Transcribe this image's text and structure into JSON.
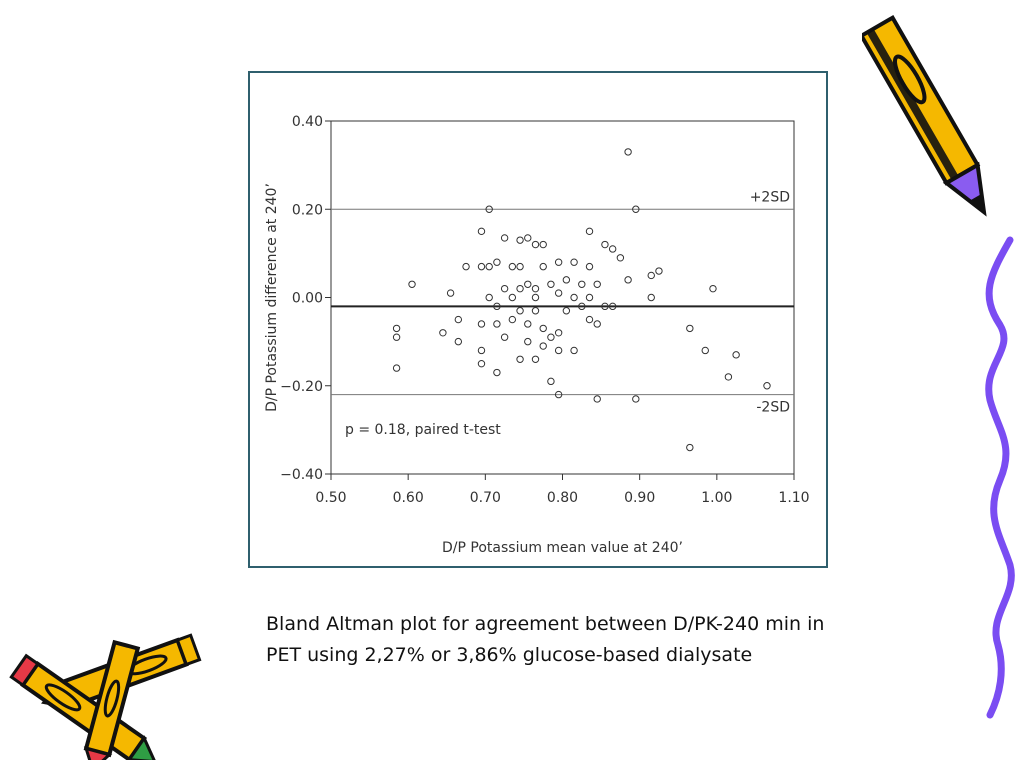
{
  "caption": "Bland Altman plot for agreement between D/PK-240 min in PET using 2,27% or 3,86% glucose-based dialysate",
  "colors": {
    "frame": "#2f5f6d",
    "axis": "#333333",
    "point": "#333333",
    "pencil_yellow": "#f5b800",
    "pencil_purple": "#8a5cf0",
    "squiggle": "#7a4df2"
  },
  "decorations": [
    "pencil-icon",
    "crossed-pencils-icon",
    "squiggle-line"
  ],
  "chart_data": {
    "type": "scatter",
    "xlabel": "D/P Potassium mean value at 240’",
    "ylabel": "D/P Potassium difference at 240’",
    "xlim": [
      0.5,
      1.1
    ],
    "ylim": [
      -0.4,
      0.4
    ],
    "x_ticks": [
      "0.50",
      "0.60",
      "0.70",
      "0.80",
      "0.90",
      "1.00",
      "1.10"
    ],
    "y_ticks": [
      "0.40",
      "0.20",
      "0.00",
      "−0.20",
      "−0.40"
    ],
    "grid": false,
    "reference_lines": [
      {
        "label": "+2SD",
        "y": 0.2
      },
      {
        "label": "",
        "y": -0.02
      },
      {
        "label": "-2SD",
        "y": -0.22
      }
    ],
    "annotation": "p = 0.18, paired t-test",
    "points": [
      [
        0.885,
        0.33
      ],
      [
        0.895,
        0.2
      ],
      [
        0.705,
        0.2
      ],
      [
        0.695,
        0.15
      ],
      [
        0.835,
        0.15
      ],
      [
        0.745,
        0.13
      ],
      [
        0.755,
        0.135
      ],
      [
        0.775,
        0.12
      ],
      [
        0.855,
        0.12
      ],
      [
        0.865,
        0.11
      ],
      [
        0.875,
        0.09
      ],
      [
        0.725,
        0.135
      ],
      [
        0.765,
        0.12
      ],
      [
        0.675,
        0.07
      ],
      [
        0.695,
        0.07
      ],
      [
        0.705,
        0.07
      ],
      [
        0.715,
        0.08
      ],
      [
        0.735,
        0.07
      ],
      [
        0.745,
        0.07
      ],
      [
        0.775,
        0.07
      ],
      [
        0.795,
        0.08
      ],
      [
        0.815,
        0.08
      ],
      [
        0.835,
        0.07
      ],
      [
        0.925,
        0.06
      ],
      [
        0.915,
        0.05
      ],
      [
        0.885,
        0.04
      ],
      [
        0.605,
        0.03
      ],
      [
        0.755,
        0.03
      ],
      [
        0.785,
        0.03
      ],
      [
        0.805,
        0.04
      ],
      [
        0.825,
        0.03
      ],
      [
        0.845,
        0.03
      ],
      [
        0.725,
        0.02
      ],
      [
        0.745,
        0.02
      ],
      [
        0.765,
        0.02
      ],
      [
        0.655,
        0.01
      ],
      [
        0.705,
        0.0
      ],
      [
        0.735,
        0.0
      ],
      [
        0.765,
        0.0
      ],
      [
        0.795,
        0.01
      ],
      [
        0.815,
        0.0
      ],
      [
        0.835,
        0.0
      ],
      [
        0.855,
        -0.02
      ],
      [
        0.915,
        0.0
      ],
      [
        0.995,
        0.02
      ],
      [
        0.715,
        -0.02
      ],
      [
        0.745,
        -0.03
      ],
      [
        0.765,
        -0.03
      ],
      [
        0.805,
        -0.03
      ],
      [
        0.825,
        -0.02
      ],
      [
        0.865,
        -0.02
      ],
      [
        0.665,
        -0.05
      ],
      [
        0.695,
        -0.06
      ],
      [
        0.715,
        -0.06
      ],
      [
        0.735,
        -0.05
      ],
      [
        0.755,
        -0.06
      ],
      [
        0.775,
        -0.07
      ],
      [
        0.795,
        -0.08
      ],
      [
        0.835,
        -0.05
      ],
      [
        0.845,
        -0.06
      ],
      [
        0.585,
        -0.07
      ],
      [
        0.585,
        -0.09
      ],
      [
        0.645,
        -0.08
      ],
      [
        0.665,
        -0.1
      ],
      [
        0.695,
        -0.12
      ],
      [
        0.725,
        -0.09
      ],
      [
        0.755,
        -0.1
      ],
      [
        0.775,
        -0.11
      ],
      [
        0.785,
        -0.09
      ],
      [
        0.795,
        -0.12
      ],
      [
        0.815,
        -0.12
      ],
      [
        0.745,
        -0.14
      ],
      [
        0.765,
        -0.14
      ],
      [
        0.695,
        -0.15
      ],
      [
        0.715,
        -0.17
      ],
      [
        0.585,
        -0.16
      ],
      [
        0.795,
        -0.22
      ],
      [
        0.785,
        -0.19
      ],
      [
        0.845,
        -0.23
      ],
      [
        0.895,
        -0.23
      ],
      [
        0.965,
        -0.07
      ],
      [
        0.985,
        -0.12
      ],
      [
        1.025,
        -0.13
      ],
      [
        1.015,
        -0.18
      ],
      [
        1.065,
        -0.2
      ],
      [
        0.965,
        -0.34
      ]
    ]
  }
}
